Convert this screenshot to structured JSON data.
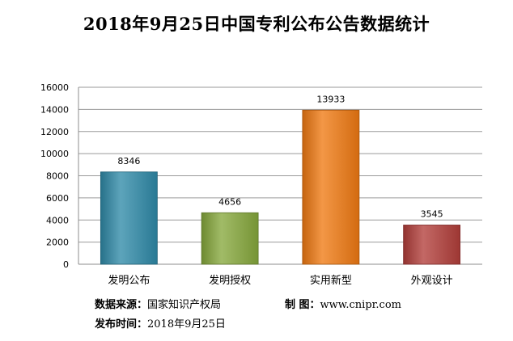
{
  "chart_data": {
    "type": "bar",
    "title": "2018年9月25日中国专利公布公告数据统计",
    "categories": [
      "发明公布",
      "发明授权",
      "实用新型",
      "外观设计"
    ],
    "values": [
      8346,
      4656,
      13933,
      3545
    ],
    "data_labels": [
      "8346",
      "4656",
      "13933",
      "3545"
    ],
    "ylim": [
      0,
      16000
    ],
    "yticks": [
      0,
      2000,
      4000,
      6000,
      8000,
      10000,
      12000,
      14000,
      16000
    ],
    "ytick_labels": [
      "0",
      "2000",
      "4000",
      "6000",
      "8000",
      "10000",
      "12000",
      "14000",
      "16000"
    ],
    "grid": true,
    "legend": "none",
    "xlabel": "",
    "ylabel": "",
    "colors": [
      "#2f8aa8",
      "#86a83c",
      "#f07a12",
      "#b23e3a"
    ]
  },
  "footer": {
    "source_label": "数据来源：",
    "source_value": "国家知识产权局",
    "maker_label": "制  图：",
    "maker_value": "www.cnipr.com",
    "date_label": "发布时间：",
    "date_value": "2018年9月25日"
  }
}
